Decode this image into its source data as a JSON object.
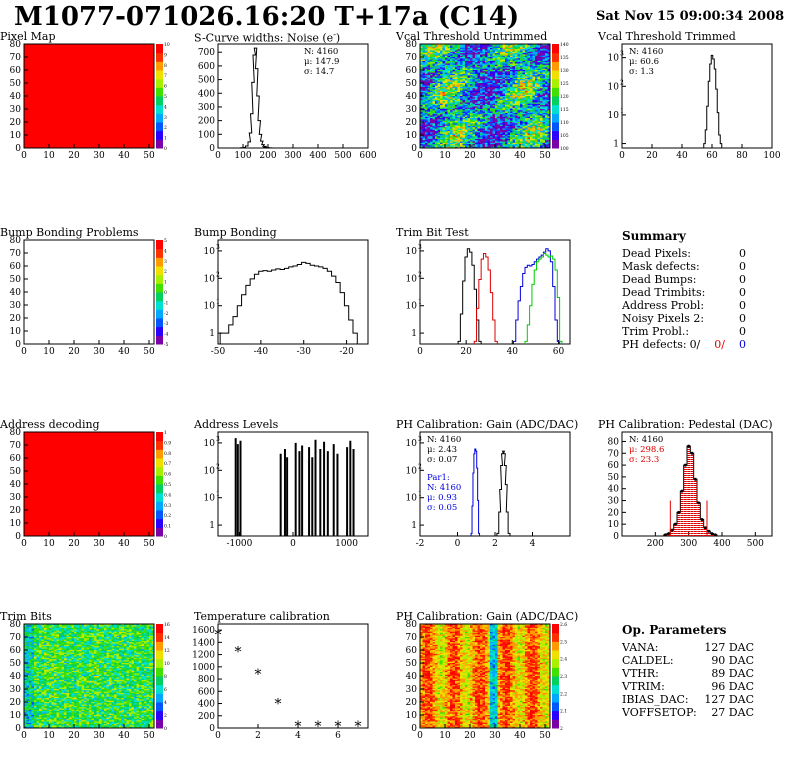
{
  "header": {
    "title": "M1077-071026.16:20 T+17a (C14)",
    "date": "Sat Nov 15 09:00:34 2008"
  },
  "chart_data": [
    {
      "id": "pixel_map",
      "type": "heatmap",
      "title": "Pixel Map",
      "xlim": [
        0,
        52
      ],
      "ylim": [
        0,
        80
      ],
      "xticks": [
        0,
        10,
        20,
        30,
        40,
        50
      ],
      "yticks": [
        0,
        10,
        20,
        30,
        40,
        50,
        60,
        70,
        80
      ],
      "fill": "uniform",
      "value": 10,
      "zticks": [
        0,
        1,
        2,
        3,
        4,
        5,
        6,
        7,
        8,
        9,
        10
      ]
    },
    {
      "id": "noise",
      "type": "line",
      "title": "S-Curve widths: Noise (e )",
      "xlim": [
        0,
        600
      ],
      "ylim": [
        0,
        760
      ],
      "xticks": [
        0,
        100,
        200,
        300,
        400,
        500,
        600
      ],
      "yticks": [
        0,
        100,
        200,
        300,
        400,
        500,
        600,
        700
      ],
      "stats": [
        "N: 4160",
        "μ: 147.9",
        "σ: 14.7"
      ],
      "x": [
        95,
        105,
        115,
        125,
        130,
        135,
        140,
        145,
        150,
        155,
        160,
        165,
        170,
        175,
        180,
        185,
        190,
        200,
        210,
        220
      ],
      "y": [
        2,
        5,
        15,
        45,
        110,
        250,
        480,
        680,
        730,
        580,
        380,
        200,
        100,
        50,
        25,
        12,
        6,
        3,
        1,
        0
      ]
    },
    {
      "id": "vcal_untrimmed",
      "type": "heatmap",
      "title": "Vcal Threshold Untrimmed",
      "xlim": [
        0,
        52
      ],
      "ylim": [
        0,
        80
      ],
      "xticks": [
        0,
        10,
        20,
        30,
        40,
        50
      ],
      "yticks": [
        0,
        10,
        20,
        30,
        40,
        50,
        60,
        70,
        80
      ],
      "fill": "noise",
      "zticks": [
        100,
        105,
        110,
        115,
        120,
        125,
        130,
        135,
        140
      ]
    },
    {
      "id": "vcal_trimmed",
      "type": "line",
      "title": "Vcal Threshold Trimmed",
      "xlim": [
        0,
        100
      ],
      "ylog": true,
      "ylim": [
        0.7,
        3000
      ],
      "xticks": [
        0,
        20,
        40,
        60,
        80,
        100
      ],
      "yticks": [
        1,
        10,
        100,
        1000
      ],
      "stats": [
        "N: 4160",
        "μ: 60.6",
        "σ: 1.3"
      ],
      "x": [
        55,
        56,
        57,
        58,
        59,
        60,
        61,
        62,
        63,
        64,
        65,
        66
      ],
      "y": [
        1,
        3,
        20,
        150,
        600,
        1200,
        900,
        400,
        80,
        12,
        2,
        1
      ]
    },
    {
      "id": "bump_problems",
      "type": "heatmap",
      "title": "Bump Bonding Problems",
      "xlim": [
        0,
        52
      ],
      "ylim": [
        0,
        80
      ],
      "xticks": [
        0,
        10,
        20,
        30,
        40,
        50
      ],
      "yticks": [
        0,
        10,
        20,
        30,
        40,
        50,
        60,
        70,
        80
      ],
      "fill": "empty",
      "zticks": [
        -5,
        -4,
        -3,
        -2,
        -1,
        0,
        1,
        2,
        3,
        4,
        5
      ]
    },
    {
      "id": "bump_bonding",
      "type": "line",
      "title": "Bump Bonding",
      "xlim": [
        -50,
        -15
      ],
      "ylog": true,
      "ylim": [
        0.4,
        2500
      ],
      "xticks": [
        -50,
        -40,
        -30,
        -20
      ],
      "yticks": [
        1,
        10,
        100,
        1000
      ],
      "x": [
        -49,
        -48,
        -47,
        -46,
        -45,
        -44,
        -43,
        -42,
        -41,
        -40,
        -39,
        -38,
        -37,
        -36,
        -35,
        -34,
        -33,
        -32,
        -31,
        -30,
        -29,
        -28,
        -27,
        -26,
        -25,
        -24,
        -23,
        -22,
        -21,
        -20,
        -19,
        -18
      ],
      "y": [
        1,
        1,
        2,
        4,
        10,
        25,
        55,
        95,
        140,
        180,
        190,
        180,
        200,
        220,
        210,
        230,
        260,
        280,
        320,
        380,
        350,
        300,
        280,
        260,
        230,
        180,
        120,
        70,
        30,
        10,
        3,
        1
      ]
    },
    {
      "id": "trim_bit_test",
      "type": "line",
      "title": "Trim Bit Test",
      "xlim": [
        0,
        65
      ],
      "ylog": true,
      "ylim": [
        0.4,
        2500
      ],
      "xticks": [
        0,
        20,
        40,
        60
      ],
      "yticks": [
        1,
        10,
        100,
        1000
      ],
      "series": [
        {
          "color": "#000000",
          "x": [
            17,
            18,
            19,
            20,
            21,
            22,
            23,
            24,
            25,
            26
          ],
          "y": [
            0.5,
            5,
            80,
            600,
            1200,
            900,
            300,
            40,
            3,
            0.5
          ]
        },
        {
          "color": "#dd0000",
          "x": [
            24,
            25,
            26,
            27,
            28,
            29,
            30,
            31,
            32,
            33
          ],
          "y": [
            0.5,
            8,
            90,
            500,
            800,
            600,
            200,
            30,
            3,
            0.5
          ]
        },
        {
          "color": "#0000dd",
          "x": [
            41,
            42,
            43,
            44,
            45,
            46,
            47,
            48,
            49,
            50,
            51,
            52,
            53,
            54,
            55,
            56,
            57,
            58,
            59,
            60
          ],
          "y": [
            0.5,
            3,
            15,
            50,
            150,
            250,
            300,
            280,
            320,
            400,
            500,
            600,
            700,
            900,
            1200,
            1000,
            400,
            50,
            3,
            0.5
          ]
        },
        {
          "color": "#00cc00",
          "x": [
            46,
            47,
            48,
            49,
            50,
            51,
            52,
            53,
            54,
            55,
            56,
            57,
            58,
            59,
            60,
            61
          ],
          "y": [
            0.5,
            2,
            10,
            60,
            200,
            400,
            500,
            600,
            800,
            700,
            600,
            650,
            500,
            200,
            20,
            0.5
          ]
        }
      ]
    },
    {
      "id": "address_decoding",
      "type": "heatmap",
      "title": "Address decoding",
      "xlim": [
        0,
        52
      ],
      "ylim": [
        0,
        80
      ],
      "xticks": [
        0,
        10,
        20,
        30,
        40,
        50
      ],
      "yticks": [
        0,
        10,
        20,
        30,
        40,
        50,
        60,
        70,
        80
      ],
      "fill": "uniform",
      "value": 1,
      "zticks": [
        0,
        0.1,
        0.2,
        0.3,
        0.4,
        0.5,
        0.6,
        0.7,
        0.8,
        0.9,
        1
      ]
    },
    {
      "id": "address_levels",
      "type": "bar",
      "title": "Address Levels",
      "xlim": [
        -1400,
        1400
      ],
      "ylog": true,
      "ylim": [
        0.4,
        2500
      ],
      "xticks": [
        -1000,
        0,
        1000
      ],
      "yticks": [
        1,
        10,
        100,
        1000
      ],
      "x": [
        -1070,
        -1030,
        -980,
        -230,
        -150,
        -110,
        50,
        120,
        170,
        300,
        360,
        420,
        510,
        580,
        650,
        760,
        830,
        1010,
        1070,
        1130
      ],
      "y": [
        1500,
        900,
        1200,
        400,
        600,
        300,
        1000,
        500,
        800,
        700,
        300,
        1300,
        600,
        1100,
        500,
        900,
        400,
        700,
        1200,
        600
      ]
    },
    {
      "id": "ph_gain",
      "type": "line",
      "title": "PH Calibration: Gain (ADC/DAC)",
      "xlim": [
        -2,
        6
      ],
      "ylog": true,
      "ylim": [
        0.4,
        2500
      ],
      "xticks": [
        -2,
        0,
        2,
        4
      ],
      "yticks": [
        1,
        10,
        100,
        1000
      ],
      "stats": [
        "N: 4160",
        "μ: 2.43",
        "σ: 0.07"
      ],
      "stats2": [
        "Par1:",
        "N: 4160",
        "μ: 0.93",
        "σ: 0.05"
      ],
      "series": [
        {
          "color": "#000000",
          "x": [
            2.15,
            2.25,
            2.3,
            2.35,
            2.4,
            2.45,
            2.5,
            2.55,
            2.6,
            2.65,
            2.75
          ],
          "y": [
            0.5,
            3,
            20,
            150,
            400,
            500,
            400,
            150,
            30,
            3,
            0.5
          ]
        },
        {
          "color": "#0000dd",
          "x": [
            0.75,
            0.8,
            0.85,
            0.9,
            0.95,
            1.0,
            1.05,
            1.1,
            1.15
          ],
          "y": [
            0.5,
            5,
            80,
            400,
            600,
            500,
            120,
            8,
            0.5
          ]
        }
      ]
    },
    {
      "id": "ph_pedestal",
      "type": "line",
      "title": "PH Calibration: Pedestal (DAC)",
      "xlim": [
        100,
        550
      ],
      "ylim": [
        0,
        88
      ],
      "xticks": [
        200,
        300,
        400,
        500
      ],
      "yticks": [
        0,
        10,
        20,
        30,
        40,
        50,
        60,
        70,
        80
      ],
      "stats": [
        "N: 4160",
        "μ: 298.6",
        "σ: 23.3"
      ],
      "x": [
        230,
        240,
        250,
        260,
        270,
        280,
        290,
        300,
        310,
        320,
        330,
        340,
        350,
        360,
        370,
        380
      ],
      "y": [
        1,
        2,
        5,
        10,
        20,
        38,
        60,
        76,
        70,
        48,
        28,
        14,
        7,
        4,
        2,
        1
      ]
    },
    {
      "id": "trim_bits",
      "type": "heatmap",
      "title": "Trim Bits",
      "xlim": [
        0,
        52
      ],
      "ylim": [
        0,
        80
      ],
      "xticks": [
        0,
        10,
        20,
        30,
        40,
        50
      ],
      "yticks": [
        0,
        10,
        20,
        30,
        40,
        50,
        60,
        70,
        80
      ],
      "fill": "trim",
      "zticks": [
        0,
        2,
        4,
        6,
        8,
        10,
        12,
        14,
        16
      ]
    },
    {
      "id": "temperature",
      "type": "scatter",
      "title": "Temperature calibration",
      "xlim": [
        0,
        7.5
      ],
      "ylim": [
        0,
        1700
      ],
      "xticks": [
        0,
        2,
        4,
        6
      ],
      "yticks": [
        0,
        200,
        400,
        600,
        800,
        1000,
        1200,
        1400,
        1600
      ],
      "x": [
        0,
        1,
        2,
        3,
        4,
        5,
        6,
        7
      ],
      "y": [
        1530,
        1250,
        880,
        400,
        30,
        30,
        30,
        30
      ]
    },
    {
      "id": "ph_gain_map",
      "type": "heatmap",
      "title": "PH Calibration: Gain (ADC/DAC)",
      "xlim": [
        0,
        52
      ],
      "ylim": [
        0,
        80
      ],
      "xticks": [
        0,
        10,
        20,
        30,
        40,
        50
      ],
      "yticks": [
        0,
        10,
        20,
        30,
        40,
        50,
        60,
        70,
        80
      ],
      "fill": "gain",
      "zticks": [
        2,
        2.1,
        2.2,
        2.3,
        2.4,
        2.5,
        2.6
      ]
    }
  ],
  "summary": {
    "title": "Summary",
    "rows": [
      {
        "label": "Dead Pixels:",
        "value": "0"
      },
      {
        "label": "Mask defects:",
        "value": "0"
      },
      {
        "label": "Dead Bumps:",
        "value": "0"
      },
      {
        "label": "Dead Trimbits:",
        "value": "0"
      },
      {
        "label": "Address Probl:",
        "value": "0"
      },
      {
        "label": "Noisy Pixels 2:",
        "value": "0"
      },
      {
        "label": "Trim Probl.:",
        "value": "0"
      }
    ],
    "ph_label": "PH defects:",
    "ph_values": [
      "0/",
      "0/",
      "0"
    ]
  },
  "op_params": {
    "title": "Op. Parameters",
    "rows": [
      {
        "label": "VANA:",
        "value": "127 DAC"
      },
      {
        "label": "CALDEL:",
        "value": "90 DAC"
      },
      {
        "label": "VTHR:",
        "value": "89 DAC"
      },
      {
        "label": "VTRIM:",
        "value": "96 DAC"
      },
      {
        "label": "IBIAS_DAC:",
        "value": "127 DAC"
      },
      {
        "label": "VOFFSETOP:",
        "value": "27 DAC"
      }
    ]
  }
}
